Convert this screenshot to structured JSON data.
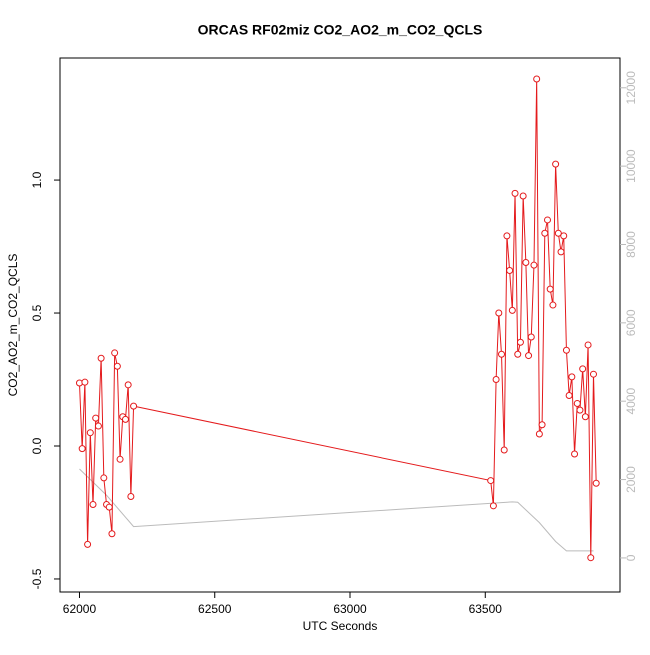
{
  "chart_data": {
    "type": "line",
    "title": "ORCAS RF02miz CO2_AO2_m_CO2_QCLS",
    "x_label": "UTC Seconds",
    "y_label": "CO2_AO2_m_CO2_QCLS",
    "xlim": [
      61928,
      63998
    ],
    "xticks": [
      62000,
      62500,
      63000,
      63500
    ],
    "ylim": [
      -0.549,
      1.459
    ],
    "yticks": [
      {
        "value": -0.5,
        "label": "-0.5"
      },
      {
        "value": 0,
        "label": "0.0"
      },
      {
        "value": 0.5,
        "label": "0.5"
      },
      {
        "value": 1,
        "label": "1.0"
      }
    ],
    "y2lim": [
      -870,
      12760
    ],
    "y2ticks": [
      0,
      2000,
      4000,
      6000,
      8000,
      10000,
      12000
    ],
    "y2_color": "#bbbbbb",
    "series": [
      {
        "color": "#e41a1c",
        "markers": true,
        "x": [
          62000,
          62010,
          62020,
          62030,
          62040,
          62050,
          62060,
          62070,
          62080,
          62090,
          62100,
          62110,
          62120,
          62130,
          62140,
          62150,
          62160,
          62170,
          62180,
          62190,
          62200,
          63520,
          63530,
          63540,
          63550,
          63560,
          63570,
          63580,
          63590,
          63600,
          63610,
          63620,
          63630,
          63640,
          63650,
          63660,
          63670,
          63680,
          63690,
          63700,
          63710,
          63720,
          63730,
          63740,
          63750,
          63760,
          63770,
          63780,
          63790,
          63800,
          63810,
          63820,
          63830,
          63840,
          63850,
          63860,
          63870,
          63880,
          63890,
          63900,
          63910
        ],
        "values": [
          0.237,
          -0.01,
          0.24,
          -0.37,
          0.05,
          -0.22,
          0.105,
          0.075,
          0.33,
          -0.12,
          -0.22,
          -0.23,
          -0.33,
          0.35,
          0.3,
          -0.05,
          0.11,
          0.1,
          0.23,
          -0.19,
          0.15,
          -0.13,
          -0.225,
          0.25,
          0.5,
          0.345,
          -0.015,
          0.79,
          0.66,
          0.51,
          0.95,
          0.345,
          0.39,
          0.94,
          0.69,
          0.34,
          0.41,
          0.68,
          1.38,
          0.045,
          0.08,
          0.8,
          0.85,
          0.59,
          0.53,
          1.06,
          0.8,
          0.73,
          0.79,
          0.36,
          0.19,
          0.26,
          -0.03,
          0.16,
          0.135,
          0.29,
          0.11,
          0.38,
          -0.42,
          0.27,
          -0.14
        ]
      },
      {
        "color": "#bbbbbb",
        "axis": "y2",
        "markers": false,
        "x": [
          62000,
          62100,
          62200,
          63600,
          63620,
          63700,
          63760,
          63800,
          63900
        ],
        "values": [
          2270,
          1600,
          800,
          1430,
          1420,
          900,
          420,
          180,
          180
        ]
      }
    ]
  }
}
